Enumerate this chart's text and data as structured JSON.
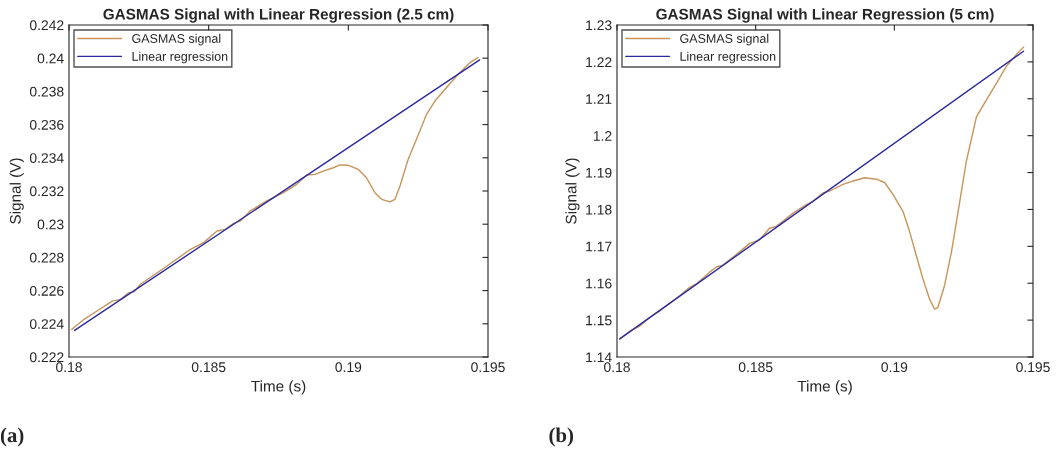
{
  "chart_data": [
    {
      "type": "line",
      "title": "GASMAS Signal with Linear Regression (2.5 cm)",
      "xlabel": "Time (s)",
      "ylabel": "Signal (V)",
      "annotations": [
        "(a)"
      ],
      "xlim": [
        0.18,
        0.195
      ],
      "xticks": [
        0.18,
        0.185,
        0.19,
        0.195
      ],
      "ylim": [
        0.222,
        0.242
      ],
      "yticks": [
        0.222,
        0.224,
        0.226,
        0.228,
        0.23,
        0.232,
        0.234,
        0.236,
        0.238,
        0.24,
        0.242
      ],
      "grid": false,
      "legend": "top left",
      "series": [
        {
          "name": "GASMAS signal",
          "color": "#c8945a",
          "x": [
            0.1801,
            0.18054,
            0.181,
            0.18155,
            0.18185,
            0.18214,
            0.18232,
            0.18256,
            0.18351,
            0.18435,
            0.18482,
            0.1853,
            0.1856,
            0.18589,
            0.18613,
            0.18649,
            0.18708,
            0.18768,
            0.18815,
            0.18851,
            0.18881,
            0.1891,
            0.18946,
            0.1897,
            0.19,
            0.19036,
            0.19065,
            0.19095,
            0.19119,
            0.19149,
            0.19167,
            0.19185,
            0.19214,
            0.19256,
            0.1928,
            0.1931,
            0.19351,
            0.19393,
            0.19435,
            0.19464
          ],
          "values": [
            0.22367,
            0.22427,
            0.22477,
            0.22537,
            0.22547,
            0.22588,
            0.22592,
            0.22638,
            0.22748,
            0.22849,
            0.22889,
            0.22959,
            0.22969,
            0.23005,
            0.23019,
            0.2308,
            0.2314,
            0.2319,
            0.2324,
            0.23296,
            0.233,
            0.2332,
            0.2334,
            0.23357,
            0.23355,
            0.2333,
            0.2328,
            0.2319,
            0.2315,
            0.23134,
            0.2315,
            0.2323,
            0.2339,
            0.23561,
            0.23662,
            0.23742,
            0.23822,
            0.23903,
            0.23973,
            0.24003
          ]
        },
        {
          "name": "Linear regression",
          "color": "#2a2aa0",
          "x": [
            0.1802,
            0.1947
          ],
          "values": [
            0.2236,
            0.2399
          ]
        }
      ]
    },
    {
      "type": "line",
      "title": "GASMAS Signal with Linear Regression (5 cm)",
      "xlabel": "Time (s)",
      "ylabel": "Signal (V)",
      "annotations": [
        "(b)"
      ],
      "xlim": [
        0.18,
        0.195
      ],
      "xticks": [
        0.18,
        0.185,
        0.19,
        0.195
      ],
      "ylim": [
        1.14,
        1.23
      ],
      "yticks": [
        1.14,
        1.15,
        1.16,
        1.17,
        1.18,
        1.19,
        1.2,
        1.21,
        1.22,
        1.23
      ],
      "grid": false,
      "legend": "top left",
      "series": [
        {
          "name": "GASMAS signal",
          "color": "#c8945a",
          "x": [
            0.1801,
            0.18046,
            0.18082,
            0.18118,
            0.18154,
            0.18226,
            0.18262,
            0.18286,
            0.18334,
            0.18358,
            0.18382,
            0.18442,
            0.18478,
            0.18514,
            0.1855,
            0.18575,
            0.18635,
            0.18683,
            0.18707,
            0.18743,
            0.18767,
            0.18815,
            0.18851,
            0.18893,
            0.18935,
            0.18965,
            0.18995,
            0.19031,
            0.19055,
            0.19079,
            0.19103,
            0.19127,
            0.19145,
            0.19157,
            0.19181,
            0.19206,
            0.19236,
            0.1926,
            0.19296,
            0.19332,
            0.19368,
            0.19404,
            0.19446,
            0.19466
          ],
          "values": [
            1.1449,
            1.147,
            1.1484,
            1.1507,
            1.1525,
            1.1566,
            1.1589,
            1.1598,
            1.163,
            1.1644,
            1.1649,
            1.1685,
            1.1708,
            1.1717,
            1.1749,
            1.1754,
            1.179,
            1.1813,
            1.1822,
            1.1845,
            1.185,
            1.1868,
            1.1877,
            1.1886,
            1.1882,
            1.1873,
            1.1841,
            1.1795,
            1.174,
            1.1676,
            1.1612,
            1.1557,
            1.153,
            1.1534,
            1.1594,
            1.1685,
            1.1822,
            1.1932,
            1.2051,
            1.2097,
            1.2142,
            1.2188,
            1.2225,
            1.224
          ]
        },
        {
          "name": "Linear regression",
          "color": "#2a2aa0",
          "x": [
            0.1801,
            0.19466
          ],
          "values": [
            1.1449,
            1.2229
          ]
        }
      ]
    }
  ]
}
